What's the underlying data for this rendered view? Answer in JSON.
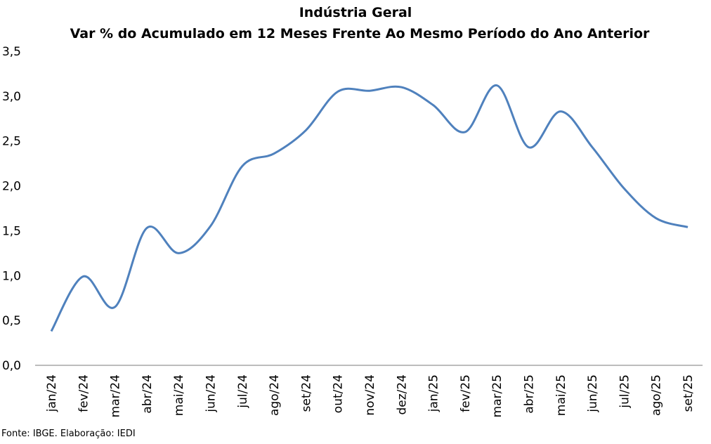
{
  "chart_data": {
    "type": "line",
    "title": "Indústria Geral",
    "subtitle": "Var % do Acumulado em 12 Meses Frente Ao Mesmo Período do Ano Anterior",
    "xlabel": "",
    "ylabel": "",
    "ylim": [
      0,
      3.5
    ],
    "yticks": [
      "0,0",
      "0,5",
      "1,0",
      "1,5",
      "2,0",
      "2,5",
      "3,0",
      "3,5"
    ],
    "categories": [
      "jan/24",
      "fev/24",
      "mar/24",
      "abr/24",
      "mai/24",
      "jun/24",
      "jul/24",
      "ago/24",
      "set/24",
      "out/24",
      "nov/24",
      "dez/24",
      "jan/25",
      "fev/25",
      "mar/25",
      "abr/25",
      "mai/25",
      "jun/25",
      "jul/25",
      "ago/25",
      "set/25"
    ],
    "series": [
      {
        "name": "Indústria Geral",
        "color": "#4f81bd",
        "values": [
          0.38,
          0.99,
          0.65,
          1.53,
          1.25,
          1.55,
          2.22,
          2.36,
          2.62,
          3.05,
          3.06,
          3.1,
          2.9,
          2.6,
          3.12,
          2.43,
          2.83,
          2.43,
          1.97,
          1.64,
          1.54
        ]
      }
    ],
    "grid": false,
    "legend": "none",
    "smooth": true
  },
  "source": "Fonte: IBGE. Elaboração: IEDI"
}
